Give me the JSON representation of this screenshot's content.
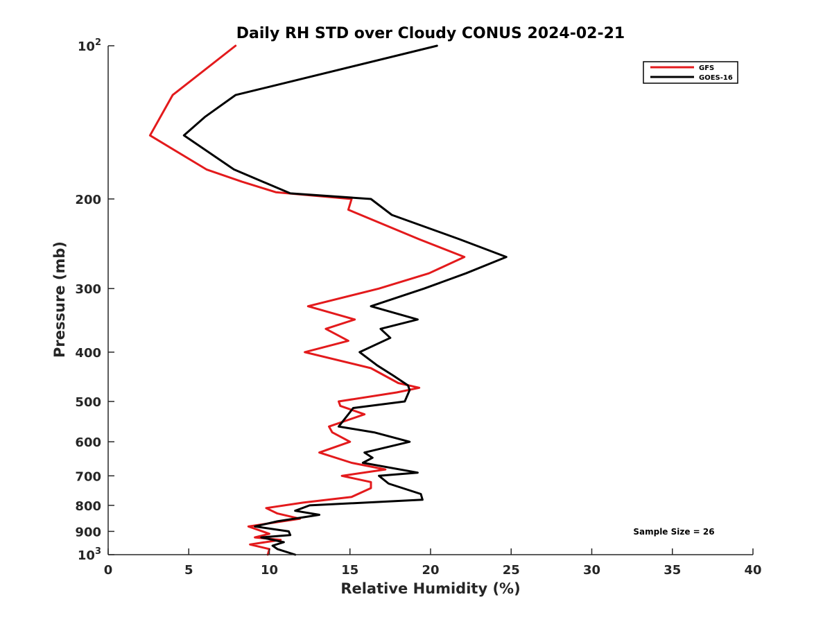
{
  "chart_data": {
    "type": "line",
    "title": "Daily RH STD over Cloudy CONUS 2024-02-21",
    "xlabel": "Relative Humidity (%)",
    "ylabel": "Pressure (mb)",
    "xlim": [
      0,
      40
    ],
    "ylim": [
      100,
      1000
    ],
    "yscale": "log",
    "yreversed": true,
    "x_ticks": [
      "0",
      "5",
      "10",
      "15",
      "20",
      "25",
      "30",
      "35",
      "40"
    ],
    "y_ticks": [
      {
        "value": 100,
        "base": "10",
        "exp": "2"
      },
      {
        "value": 200,
        "label": "200"
      },
      {
        "value": 300,
        "label": "300"
      },
      {
        "value": 400,
        "label": "400"
      },
      {
        "value": 500,
        "label": "500"
      },
      {
        "value": 600,
        "label": "600"
      },
      {
        "value": 700,
        "label": "700"
      },
      {
        "value": 800,
        "label": "800"
      },
      {
        "value": 900,
        "label": "900"
      },
      {
        "value": 1000,
        "base": "10",
        "exp": "3"
      }
    ],
    "legend_position": "top-right",
    "annotation": "Sample Size = 26",
    "series": [
      {
        "name": "GFS",
        "color": "#e31a1c",
        "points": [
          [
            7.9,
            100
          ],
          [
            4.0,
            125
          ],
          [
            2.6,
            150
          ],
          [
            6.1,
            175
          ],
          [
            8.3,
            185
          ],
          [
            10.4,
            194
          ],
          [
            15.1,
            200
          ],
          [
            14.9,
            210
          ],
          [
            19.3,
            240
          ],
          [
            22.1,
            260
          ],
          [
            19.9,
            280
          ],
          [
            16.8,
            300
          ],
          [
            12.4,
            325
          ],
          [
            15.3,
            345
          ],
          [
            13.5,
            360
          ],
          [
            14.9,
            380
          ],
          [
            12.2,
            400
          ],
          [
            16.3,
            430
          ],
          [
            18.0,
            460
          ],
          [
            19.3,
            470
          ],
          [
            17.9,
            480
          ],
          [
            14.3,
            500
          ],
          [
            14.4,
            510
          ],
          [
            15.9,
            530
          ],
          [
            13.7,
            560
          ],
          [
            13.9,
            575
          ],
          [
            15.0,
            600
          ],
          [
            13.1,
            630
          ],
          [
            15.1,
            660
          ],
          [
            17.2,
            680
          ],
          [
            14.5,
            700
          ],
          [
            16.3,
            720
          ],
          [
            16.3,
            740
          ],
          [
            15.1,
            770
          ],
          [
            12.1,
            790
          ],
          [
            9.8,
            810
          ],
          [
            10.5,
            830
          ],
          [
            11.9,
            850
          ],
          [
            8.7,
            880
          ],
          [
            10.0,
            910
          ],
          [
            9.1,
            925
          ],
          [
            10.7,
            935
          ],
          [
            8.8,
            955
          ],
          [
            10.0,
            975
          ],
          [
            9.9,
            1000
          ]
        ]
      },
      {
        "name": "GOES-16",
        "color": "#000000",
        "points": [
          [
            20.4,
            100
          ],
          [
            7.9,
            125
          ],
          [
            6.0,
            138
          ],
          [
            4.7,
            150
          ],
          [
            7.8,
            175
          ],
          [
            11.3,
            195
          ],
          [
            16.3,
            200
          ],
          [
            17.6,
            215
          ],
          [
            21.8,
            240
          ],
          [
            24.7,
            260
          ],
          [
            22.2,
            280
          ],
          [
            19.6,
            300
          ],
          [
            16.3,
            325
          ],
          [
            19.2,
            345
          ],
          [
            16.9,
            360
          ],
          [
            17.5,
            375
          ],
          [
            15.6,
            400
          ],
          [
            16.7,
            425
          ],
          [
            17.7,
            445
          ],
          [
            18.6,
            465
          ],
          [
            18.7,
            475
          ],
          [
            18.4,
            500
          ],
          [
            15.2,
            515
          ],
          [
            14.9,
            530
          ],
          [
            14.3,
            560
          ],
          [
            16.5,
            575
          ],
          [
            18.7,
            600
          ],
          [
            15.9,
            630
          ],
          [
            16.4,
            645
          ],
          [
            15.8,
            660
          ],
          [
            19.2,
            690
          ],
          [
            16.8,
            700
          ],
          [
            17.4,
            725
          ],
          [
            19.4,
            760
          ],
          [
            19.5,
            780
          ],
          [
            12.5,
            800
          ],
          [
            11.6,
            820
          ],
          [
            13.1,
            835
          ],
          [
            10.5,
            860
          ],
          [
            9.1,
            880
          ],
          [
            11.2,
            900
          ],
          [
            11.3,
            915
          ],
          [
            9.5,
            925
          ],
          [
            10.9,
            945
          ],
          [
            10.2,
            960
          ],
          [
            10.5,
            975
          ],
          [
            11.6,
            1000
          ]
        ]
      }
    ]
  }
}
